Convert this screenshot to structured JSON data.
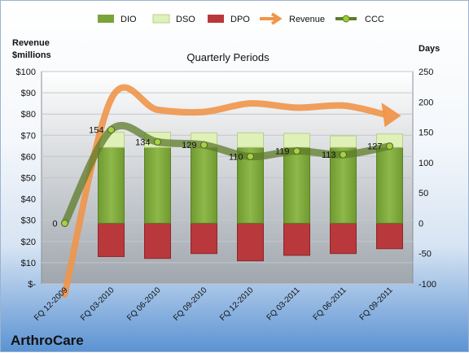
{
  "chart_data": {
    "type": "bar",
    "title": "Quarterly Periods",
    "company": "ArthroCare",
    "left_axis_label": [
      "Revenue",
      "$millions"
    ],
    "right_axis_label": "Days",
    "left_ticks": [
      "$-",
      "$10",
      "$20",
      "$30",
      "$40",
      "$50",
      "$60",
      "$70",
      "$80",
      "$90",
      "$100"
    ],
    "right_ticks": [
      "-100",
      "-50",
      "0",
      "50",
      "100",
      "150",
      "200",
      "250"
    ],
    "left_ylim": [
      0,
      100
    ],
    "right_ylim": [
      -100,
      250
    ],
    "categories": [
      "FQ 12-2009",
      "FQ 03-2010",
      "FQ 06-2010",
      "FQ 09-2010",
      "FQ 12-2010",
      "FQ 03-2011",
      "FQ 06-2011",
      "FQ 09-2011"
    ],
    "legend": [
      "DIO",
      "DSO",
      "DPO",
      "Revenue",
      "CCC"
    ],
    "colors": {
      "DIO": "#7aa33a",
      "DSO": "#dff0b8",
      "DPO": "#b8383c",
      "Revenue": "#f0954a",
      "CCC": "#5e7b2a"
    },
    "series": [
      {
        "name": "DIO",
        "values": [
          null,
          125,
          125,
          125,
          125,
          125,
          125,
          125
        ]
      },
      {
        "name": "DSO",
        "values": [
          null,
          25,
          25,
          24,
          24,
          23,
          19,
          22
        ]
      },
      {
        "name": "DPO",
        "values": [
          null,
          -55,
          -58,
          -50,
          -62,
          -53,
          -50,
          -42
        ]
      },
      {
        "name": "Revenue",
        "values": [
          -5,
          87,
          82,
          81,
          85,
          83,
          84,
          80
        ]
      },
      {
        "name": "CCC",
        "values": [
          0,
          154,
          134,
          129,
          110,
          119,
          113,
          127
        ]
      }
    ],
    "ccc_labels": [
      "0",
      "154",
      "134",
      "129",
      "110",
      "119",
      "113",
      "127"
    ]
  }
}
